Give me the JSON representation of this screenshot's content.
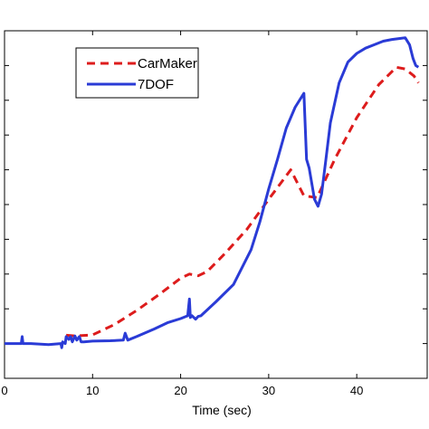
{
  "chart_data": {
    "type": "line",
    "title": "",
    "xlabel": "Time (sec)",
    "ylabel": "",
    "xlim": [
      0,
      48
    ],
    "ylim": [
      0,
      10
    ],
    "x_ticks": [
      0,
      10,
      20,
      30,
      40
    ],
    "x_tick_labels": [
      "0",
      "10",
      "20",
      "30",
      "40"
    ],
    "y_ticks": [
      0,
      1,
      2,
      3,
      4,
      5,
      6,
      7,
      8,
      9,
      10
    ],
    "grid": false,
    "legend_position": "top-left",
    "series": [
      {
        "name": "CarMaker",
        "color": "#dd1c1c",
        "dash": "dashed",
        "x": [
          7.0,
          8.0,
          10.0,
          12.5,
          15.0,
          17.5,
          20.0,
          21.0,
          22.0,
          23.0,
          25.0,
          27.5,
          30.0,
          32.5,
          34.0,
          35.5,
          37.5,
          40.0,
          42.5,
          44.5,
          45.5,
          46.5,
          47.0
        ],
        "y": [
          1.24,
          1.22,
          1.25,
          1.55,
          1.95,
          2.4,
          2.88,
          3.0,
          2.95,
          3.07,
          3.58,
          4.28,
          5.15,
          6.0,
          5.25,
          5.2,
          6.3,
          7.5,
          8.45,
          8.95,
          8.9,
          8.7,
          8.5
        ]
      },
      {
        "name": "7DOF",
        "color": "#2a3bd6",
        "dash": "solid",
        "x": [
          0,
          1.9,
          2.0,
          2.1,
          3.0,
          5.0,
          6.4,
          6.5,
          6.6,
          6.9,
          7.0,
          7.3,
          7.5,
          7.7,
          8.0,
          8.2,
          8.5,
          8.7,
          9.0,
          10.0,
          12.0,
          13.5,
          13.7,
          14.0,
          15.0,
          17.0,
          18.5,
          20.0,
          20.8,
          21.0,
          21.1,
          21.3,
          21.7,
          22.0,
          22.3,
          24.0,
          26.0,
          28.0,
          29.0,
          30.0,
          31.0,
          32.0,
          33.0,
          34.0,
          34.3,
          34.6,
          35.2,
          35.6,
          36.0,
          36.5,
          37.0,
          38.0,
          39.0,
          40.0,
          41.0,
          42.0,
          43.0,
          44.0,
          45.0,
          45.5,
          46.0,
          46.4,
          46.7,
          47.0
        ],
        "y": [
          1.0,
          1.0,
          1.2,
          1.0,
          1.0,
          0.97,
          1.0,
          0.88,
          1.05,
          1.0,
          1.2,
          1.12,
          1.2,
          1.05,
          1.22,
          1.1,
          1.2,
          1.05,
          1.05,
          1.07,
          1.08,
          1.1,
          1.3,
          1.1,
          1.2,
          1.42,
          1.6,
          1.72,
          1.8,
          2.28,
          1.75,
          1.8,
          1.7,
          1.78,
          1.8,
          2.2,
          2.7,
          3.7,
          4.5,
          5.45,
          6.3,
          7.2,
          7.8,
          8.2,
          6.3,
          6.05,
          5.15,
          4.95,
          5.3,
          6.3,
          7.35,
          8.5,
          9.1,
          9.35,
          9.5,
          9.6,
          9.7,
          9.75,
          9.78,
          9.8,
          9.6,
          9.2,
          9.0,
          8.95
        ]
      }
    ]
  }
}
